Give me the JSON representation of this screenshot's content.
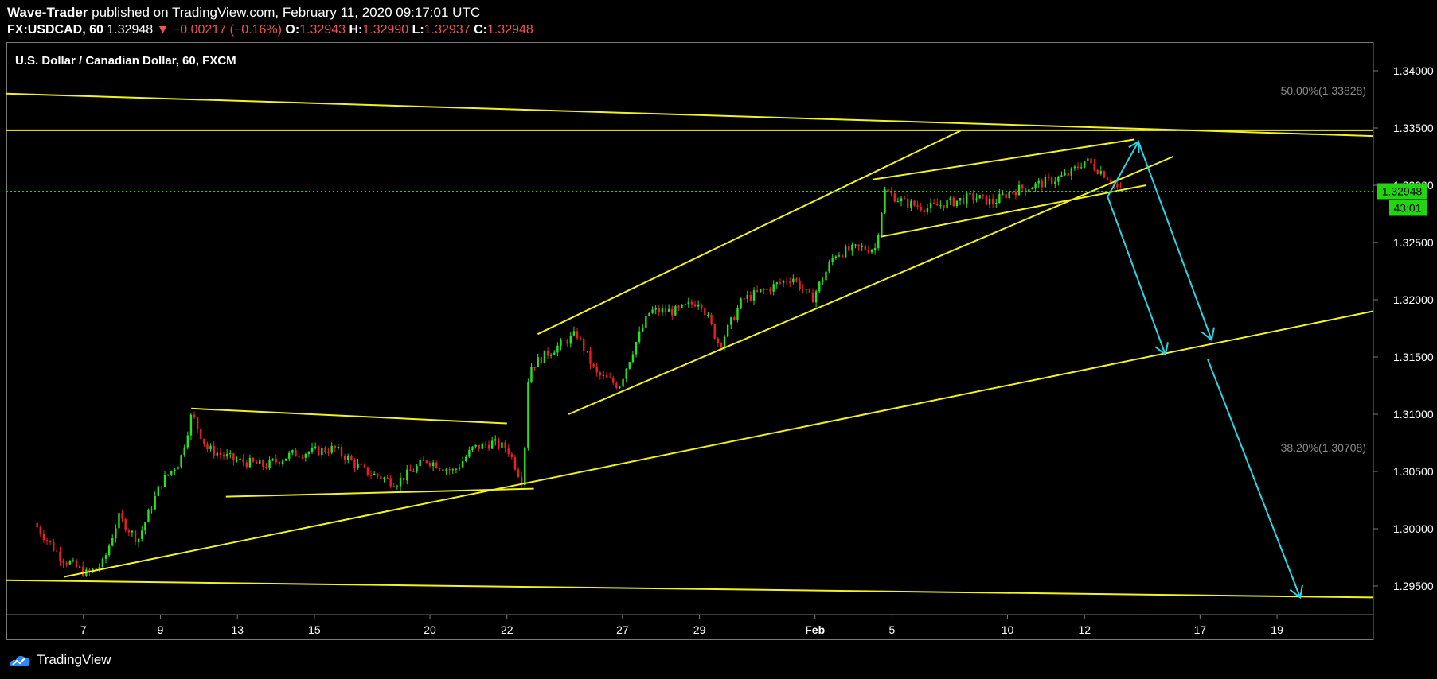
{
  "header": {
    "author": "Wave-Trader",
    "published_text": "published on TradingView.com, February 11, 2020 09:17:01 UTC",
    "symbol": "FX:USDCAD, 60",
    "last": "1.32948",
    "change": "▼ −0.00217 (−0.16%)",
    "o_label": "O:",
    "o_value": "1.32943",
    "h_label": "H:",
    "h_value": "1.32990",
    "l_label": "L:",
    "l_value": "1.32937",
    "c_label": "C:",
    "c_value": "1.32948"
  },
  "footer": {
    "brand": "TradingView"
  },
  "colors": {
    "background": "#000000",
    "up": "#26e31f",
    "down": "#f01f1f",
    "trendline": "#f2f21e",
    "arrow": "#27d7e5",
    "price_tag": "#21d60f"
  },
  "chart_data": {
    "type": "candlestick",
    "title": "U.S. Dollar / Canadian Dollar, 60, FXCM",
    "ylim": [
      1.2925,
      1.3425
    ],
    "y_ticks": [
      1.34,
      1.335,
      1.33,
      1.325,
      1.32,
      1.315,
      1.31,
      1.305,
      1.3,
      1.295
    ],
    "y_tick_labels": [
      "1.34000",
      "1.33500",
      "1.33000",
      "1.32500",
      "1.32000",
      "1.31500",
      "1.31000",
      "1.30500",
      "1.30000",
      "1.29500"
    ],
    "x_tick_labels": [
      {
        "label": "7",
        "day": 2
      },
      {
        "label": "9",
        "day": 4
      },
      {
        "label": "13",
        "day": 6
      },
      {
        "label": "15",
        "day": 8
      },
      {
        "label": "20",
        "day": 11
      },
      {
        "label": "22",
        "day": 13
      },
      {
        "label": "27",
        "day": 16
      },
      {
        "label": "29",
        "day": 18
      },
      {
        "label": "Feb",
        "day": 21
      },
      {
        "label": "5",
        "day": 23
      },
      {
        "label": "10",
        "day": 26
      },
      {
        "label": "12",
        "day": 28
      },
      {
        "label": "17",
        "day": 31
      },
      {
        "label": "19",
        "day": 33
      }
    ],
    "price_anchors": [
      [
        0.8,
        1.3005
      ],
      [
        1.5,
        1.2975
      ],
      [
        2.2,
        1.296
      ],
      [
        2.6,
        1.297
      ],
      [
        3.0,
        1.301
      ],
      [
        3.5,
        1.299
      ],
      [
        4.1,
        1.304
      ],
      [
        4.6,
        1.306
      ],
      [
        4.9,
        1.31
      ],
      [
        5.3,
        1.307
      ],
      [
        6.0,
        1.306
      ],
      [
        6.8,
        1.3055
      ],
      [
        7.5,
        1.3065
      ],
      [
        8.6,
        1.307
      ],
      [
        9.4,
        1.305
      ],
      [
        10.2,
        1.304
      ],
      [
        11.0,
        1.306
      ],
      [
        11.7,
        1.305
      ],
      [
        12.2,
        1.307
      ],
      [
        12.7,
        1.3075
      ],
      [
        13.1,
        1.307
      ],
      [
        13.5,
        1.304
      ],
      [
        13.65,
        1.314
      ],
      [
        14.2,
        1.3155
      ],
      [
        14.9,
        1.317
      ],
      [
        15.4,
        1.3135
      ],
      [
        16.0,
        1.3125
      ],
      [
        16.4,
        1.316
      ],
      [
        16.8,
        1.319
      ],
      [
        17.5,
        1.319
      ],
      [
        18.1,
        1.32
      ],
      [
        18.6,
        1.316
      ],
      [
        19.2,
        1.32
      ],
      [
        19.9,
        1.321
      ],
      [
        20.5,
        1.322
      ],
      [
        21.0,
        1.32
      ],
      [
        21.6,
        1.324
      ],
      [
        22.2,
        1.3245
      ],
      [
        22.65,
        1.3245
      ],
      [
        22.9,
        1.3295
      ],
      [
        23.4,
        1.3285
      ],
      [
        24.0,
        1.328
      ],
      [
        24.6,
        1.3285
      ],
      [
        25.2,
        1.329
      ],
      [
        25.7,
        1.3285
      ],
      [
        26.2,
        1.3295
      ],
      [
        26.8,
        1.33
      ],
      [
        27.3,
        1.3305
      ],
      [
        27.7,
        1.331
      ],
      [
        28.1,
        1.3322
      ],
      [
        28.6,
        1.331
      ],
      [
        29.0,
        1.3295
      ]
    ],
    "last_price": {
      "label": "1.32948",
      "value": 1.32948,
      "countdown": "43:01"
    },
    "fib_levels": [
      {
        "label": "50.00%(1.33828)",
        "value": 1.33828
      },
      {
        "label": "38.20%(1.30708)",
        "value": 1.30708
      }
    ],
    "trendlines": [
      {
        "kind": "upper-descending-channel",
        "points": [
          [
            0,
            1.338
          ],
          [
            35.5,
            1.3343
          ]
        ]
      },
      {
        "kind": "lower-descending-channel",
        "points": [
          [
            0,
            1.2955
          ],
          [
            35.5,
            1.294
          ]
        ]
      },
      {
        "kind": "horizontal-resistance",
        "points": [
          [
            0,
            1.3348
          ],
          [
            35.5,
            1.3348
          ]
        ]
      },
      {
        "kind": "main-rising-support",
        "points": [
          [
            1.5,
            1.2958
          ],
          [
            35.5,
            1.319
          ]
        ]
      },
      {
        "kind": "rising-wedge-top",
        "points": [
          [
            13.8,
            1.317
          ],
          [
            24.8,
            1.3348
          ]
        ]
      },
      {
        "kind": "rising-wedge-bottom",
        "points": [
          [
            14.6,
            1.31
          ],
          [
            30.3,
            1.3325
          ]
        ]
      },
      {
        "kind": "flag-top",
        "points": [
          [
            4.8,
            1.3105
          ],
          [
            13.0,
            1.3092
          ]
        ]
      },
      {
        "kind": "flag-bottom",
        "points": [
          [
            5.7,
            1.3028
          ],
          [
            13.7,
            1.3035
          ]
        ]
      },
      {
        "kind": "rising-flag-top",
        "points": [
          [
            22.5,
            1.3305
          ],
          [
            29.3,
            1.334
          ]
        ]
      },
      {
        "kind": "rising-flag-bottom",
        "points": [
          [
            22.7,
            1.3255
          ],
          [
            29.6,
            1.33
          ]
        ]
      }
    ],
    "projection_arrows": [
      {
        "points": [
          [
            28.6,
            1.329
          ],
          [
            30.1,
            1.3152
          ]
        ]
      },
      {
        "points": [
          [
            28.6,
            1.329
          ],
          [
            29.4,
            1.3338
          ],
          [
            31.3,
            1.3165
          ]
        ]
      },
      {
        "points": [
          [
            31.2,
            1.3148
          ],
          [
            33.6,
            1.294
          ]
        ]
      }
    ]
  }
}
